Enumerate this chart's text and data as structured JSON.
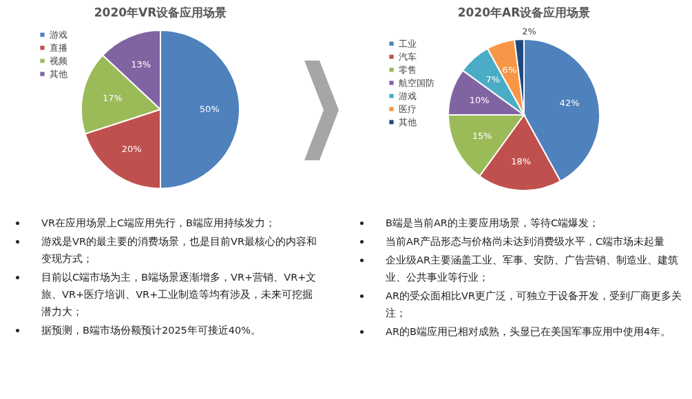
{
  "chart_data": [
    {
      "type": "pie",
      "title": "2020年VR设备应用场景",
      "categories": [
        "游戏",
        "直播",
        "视频",
        "其他"
      ],
      "values": [
        50,
        20,
        17,
        13
      ],
      "value_labels": [
        "50%",
        "20%",
        "17%",
        "13%"
      ],
      "colors": [
        "#4f81bd",
        "#c0504d",
        "#9bbb59",
        "#8064a2"
      ],
      "legend": "left",
      "annotations": [
        "VR在应用场景上C端应用先行，B端应用持续发力；",
        "游戏是VR的最主要的消费场景，也是目前VR最核心的内容和变现方式；",
        "目前以C端市场为主，B端场景逐渐增多，VR+营销、VR+文旅、VR+医疗培训、VR+工业制造等均有涉及，未来可挖掘潜力大；",
        "据预测，B端市场份额预计2025年可接近40%。"
      ]
    },
    {
      "type": "pie",
      "title": "2020年AR设备应用场景",
      "categories": [
        "工业",
        "汽车",
        "零售",
        "航空国防",
        "游戏",
        "医疗",
        "其他"
      ],
      "values": [
        42,
        18,
        15,
        10,
        7,
        6,
        2
      ],
      "value_labels": [
        "42%",
        "18%",
        "15%",
        "10%",
        "7%",
        "6%",
        "2%"
      ],
      "colors": [
        "#4f81bd",
        "#c0504d",
        "#9bbb59",
        "#8064a2",
        "#4bacc6",
        "#f79646",
        "#1f497d"
      ],
      "legend": "left",
      "annotations": [
        "B端是当前AR的主要应用场景，等待C端爆发；",
        "当前AR产品形态与价格尚未达到消费级水平，C端市场未起量",
        "企业级AR主要涵盖工业、军事、安防、广告营销、制造业、建筑业、公共事业等行业；",
        "AR的受众面相比VR更广泛，可独立于设备开发，受到厂商更多关注；",
        "AR的B端应用已相对成熟，头显已在美国军事应用中使用4年。"
      ]
    }
  ]
}
